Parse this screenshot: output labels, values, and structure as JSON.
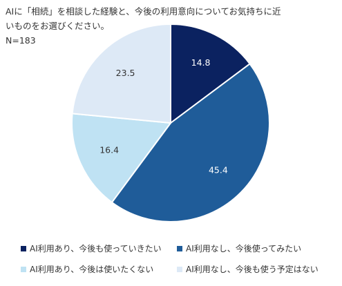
{
  "chart_data": {
    "type": "pie",
    "title_lines": [
      "AIに「相続」を相談した経験と、今後の利用意向についてお気持ちに近",
      "いものをお選びください。",
      "N=183"
    ],
    "categories": [
      "AI利用あり、今後も使っていきたい",
      "AI利用なし、今後使ってみたい",
      "AI利用あり、今後は使いたくない",
      "AI利用なし、今後も使う予定はない"
    ],
    "values": [
      14.8,
      45.4,
      16.4,
      23.5
    ],
    "colors": [
      "#0b2260",
      "#1f5c99",
      "#bfe2f3",
      "#dde9f6"
    ],
    "label_colors": [
      "#ffffff",
      "#ffffff",
      "#333333",
      "#333333"
    ],
    "legend_position": "bottom"
  }
}
